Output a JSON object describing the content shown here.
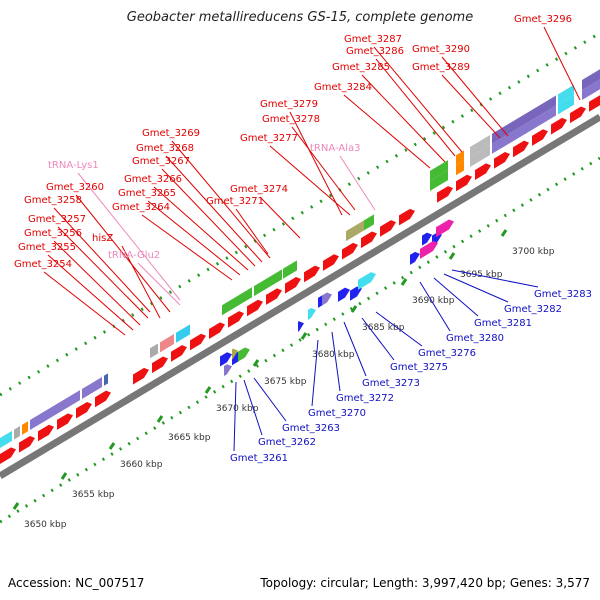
{
  "title": "Geobacter metallireducens GS-15, complete genome",
  "footer": {
    "accession": "Accession: NC_007517",
    "topology": "Topology: circular; Length: 3,997,420 bp; Genes: 3,577"
  },
  "colors": {
    "forward_label": "#e00000",
    "reverse_label": "#1010c0",
    "rna_label": "#ee88bb",
    "backbone": "#999999",
    "ruler": "#229922"
  },
  "ruler_ticks": [
    {
      "label": "3650 kbp"
    },
    {
      "label": "3655 kbp"
    },
    {
      "label": "3660 kbp"
    },
    {
      "label": "3665 kbp"
    },
    {
      "label": "3670 kbp"
    },
    {
      "label": "3675 kbp"
    },
    {
      "label": "3680 kbp"
    },
    {
      "label": "3685 kbp"
    },
    {
      "label": "3690 kbp"
    },
    {
      "label": "3695 kbp"
    },
    {
      "label": "3700 kbp"
    }
  ],
  "forward_labels": [
    "Gmet_3254",
    "Gmet_3255",
    "Gmet_3256",
    "Gmet_3257",
    "Gmet_3258",
    "hisZ",
    "tRNA-Glu2",
    "Gmet_3260",
    "tRNA-Lys1",
    "Gmet_3264",
    "Gmet_3265",
    "Gmet_3266",
    "Gmet_3267",
    "Gmet_3268",
    "Gmet_3269",
    "Gmet_3271",
    "Gmet_3274",
    "Gmet_3277",
    "tRNA-Ala3",
    "Gmet_3278",
    "Gmet_3279",
    "Gmet_3284",
    "Gmet_3285",
    "Gmet_3286",
    "Gmet_3287",
    "Gmet_3289",
    "Gmet_3290",
    "Gmet_3296"
  ],
  "reverse_labels": [
    "Gmet_3261",
    "Gmet_3262",
    "Gmet_3263",
    "Gmet_3270",
    "Gmet_3272",
    "Gmet_3273",
    "Gmet_3275",
    "Gmet_3276",
    "Gmet_3280",
    "Gmet_3281",
    "Gmet_3282",
    "Gmet_3283"
  ]
}
